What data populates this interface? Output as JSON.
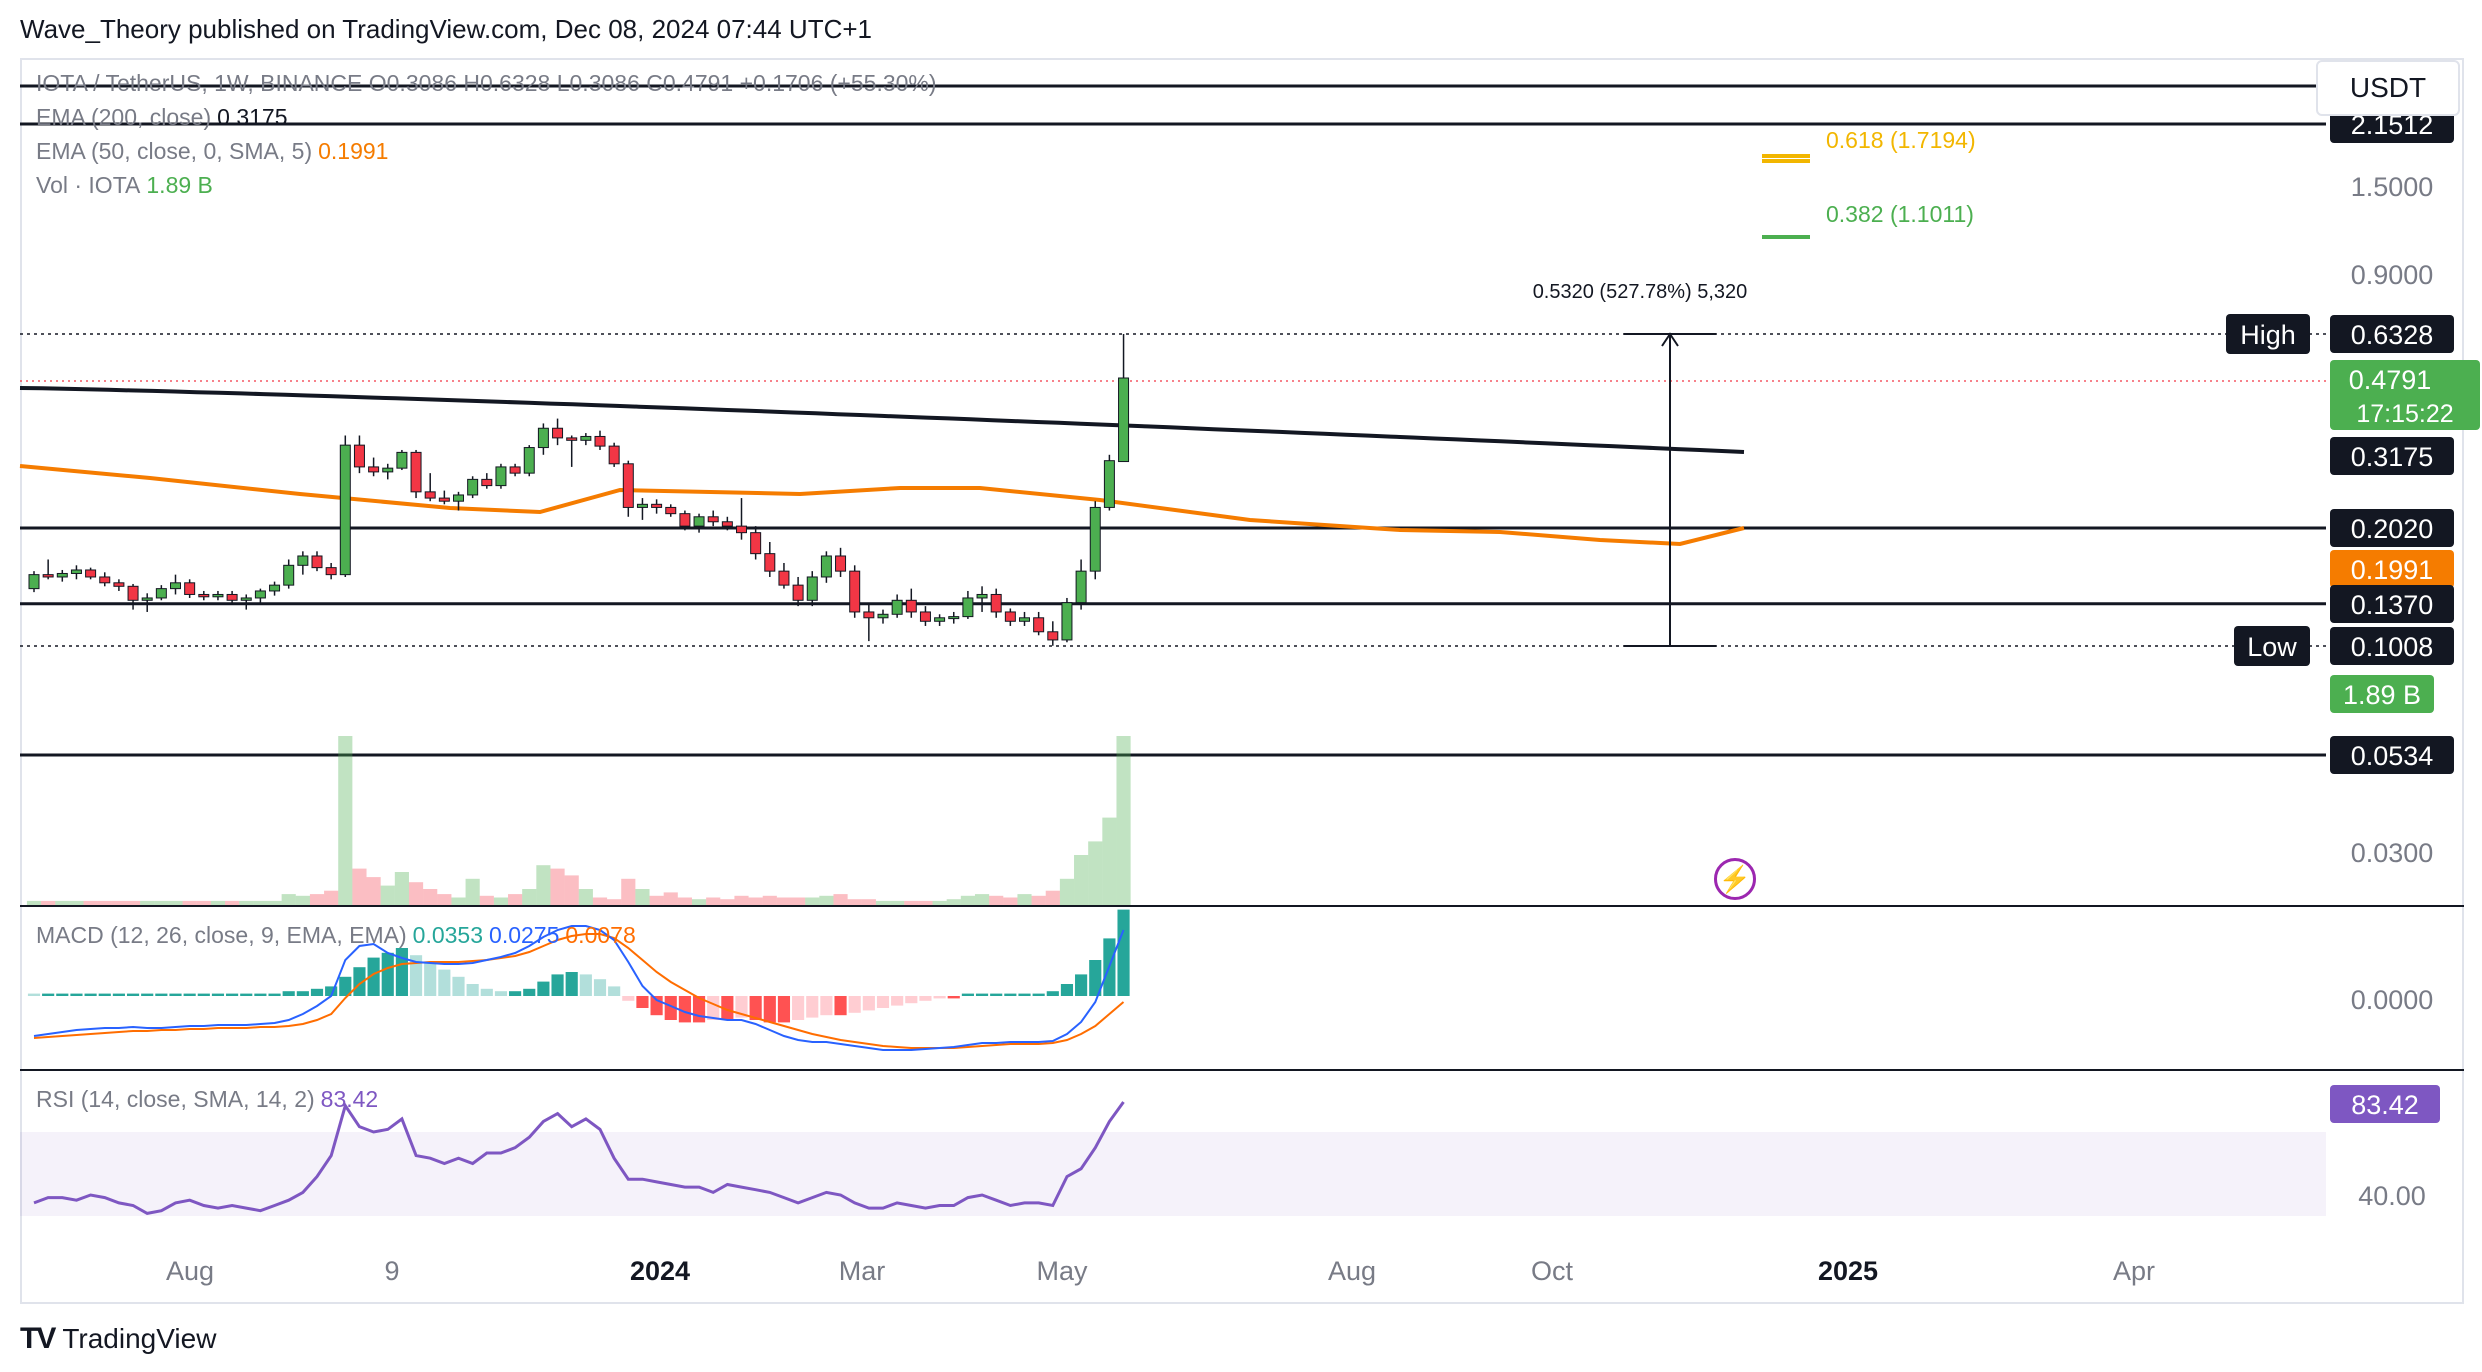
{
  "header": "Wave_Theory published on TradingView.com, Dec 08, 2024 07:44 UTC+1",
  "currency_button": "USDT",
  "footer_brand": "TradingView",
  "legends": {
    "price": "IOTA / TetherUS, 1W, BINANCE  O0.3086  H0.6328  L0.3086  C0.4791  +0.1706 (+55.30%)",
    "ema200_label": "EMA (200, close)",
    "ema200_value": "0.3175",
    "ema50_label": "EMA (50, close, 0, SMA, 5)",
    "ema50_value": "0.1991",
    "vol_label": "Vol · IOTA",
    "vol_value": "1.89 B",
    "macd_label": "MACD (12, 26, close, 9, EMA, EMA)",
    "macd_hist": "0.0353",
    "macd_line": "0.0275",
    "macd_signal": "0.0078",
    "rsi_label": "RSI (14, close, SMA, 14, 2)",
    "rsi_value": "83.42"
  },
  "colors": {
    "up": "#4caf50",
    "down": "#f23645",
    "ema200": "#131722",
    "ema50": "#f57c00",
    "macd": "#2962ff",
    "signal": "#ff6d00",
    "rsi": "#7e57c2",
    "fib618": "#f2b600",
    "fib382": "#4caf50"
  },
  "chart_data": {
    "type": "candlestick",
    "timeframe": "1W",
    "price_axis_ticks": [
      "1.5000",
      "0.9000",
      "0.0300"
    ],
    "x_ticks": [
      "Aug",
      "9",
      "2024",
      "Mar",
      "May",
      "Aug",
      "Oct",
      "2025",
      "Apr"
    ],
    "candles": [
      [
        0.15,
        0.165,
        0.147,
        0.162
      ],
      [
        0.162,
        0.175,
        0.158,
        0.16
      ],
      [
        0.16,
        0.166,
        0.156,
        0.163
      ],
      [
        0.163,
        0.17,
        0.158,
        0.166
      ],
      [
        0.166,
        0.168,
        0.158,
        0.16
      ],
      [
        0.16,
        0.164,
        0.152,
        0.155
      ],
      [
        0.155,
        0.158,
        0.148,
        0.152
      ],
      [
        0.152,
        0.154,
        0.132,
        0.14
      ],
      [
        0.14,
        0.146,
        0.13,
        0.142
      ],
      [
        0.142,
        0.153,
        0.14,
        0.15
      ],
      [
        0.15,
        0.162,
        0.145,
        0.155
      ],
      [
        0.155,
        0.158,
        0.142,
        0.145
      ],
      [
        0.145,
        0.148,
        0.14,
        0.143
      ],
      [
        0.143,
        0.148,
        0.14,
        0.145
      ],
      [
        0.145,
        0.148,
        0.136,
        0.14
      ],
      [
        0.14,
        0.145,
        0.132,
        0.142
      ],
      [
        0.142,
        0.15,
        0.138,
        0.148
      ],
      [
        0.148,
        0.156,
        0.144,
        0.153
      ],
      [
        0.153,
        0.175,
        0.15,
        0.17
      ],
      [
        0.17,
        0.182,
        0.162,
        0.178
      ],
      [
        0.178,
        0.182,
        0.165,
        0.168
      ],
      [
        0.168,
        0.172,
        0.158,
        0.162
      ],
      [
        0.162,
        0.36,
        0.16,
        0.34
      ],
      [
        0.34,
        0.36,
        0.29,
        0.3
      ],
      [
        0.3,
        0.315,
        0.285,
        0.292
      ],
      [
        0.292,
        0.305,
        0.28,
        0.298
      ],
      [
        0.298,
        0.33,
        0.295,
        0.325
      ],
      [
        0.325,
        0.33,
        0.25,
        0.26
      ],
      [
        0.26,
        0.29,
        0.245,
        0.25
      ],
      [
        0.25,
        0.262,
        0.24,
        0.245
      ],
      [
        0.245,
        0.26,
        0.23,
        0.255
      ],
      [
        0.255,
        0.285,
        0.25,
        0.28
      ],
      [
        0.28,
        0.29,
        0.265,
        0.27
      ],
      [
        0.27,
        0.305,
        0.265,
        0.3
      ],
      [
        0.3,
        0.305,
        0.285,
        0.29
      ],
      [
        0.29,
        0.34,
        0.285,
        0.335
      ],
      [
        0.335,
        0.385,
        0.32,
        0.375
      ],
      [
        0.375,
        0.395,
        0.34,
        0.355
      ],
      [
        0.355,
        0.36,
        0.3,
        0.35
      ],
      [
        0.35,
        0.365,
        0.34,
        0.358
      ],
      [
        0.358,
        0.37,
        0.33,
        0.338
      ],
      [
        0.338,
        0.345,
        0.3,
        0.305
      ],
      [
        0.305,
        0.31,
        0.22,
        0.235
      ],
      [
        0.235,
        0.25,
        0.215,
        0.24
      ],
      [
        0.24,
        0.248,
        0.225,
        0.235
      ],
      [
        0.235,
        0.24,
        0.22,
        0.225
      ],
      [
        0.225,
        0.23,
        0.2,
        0.205
      ],
      [
        0.205,
        0.225,
        0.198,
        0.22
      ],
      [
        0.22,
        0.23,
        0.205,
        0.212
      ],
      [
        0.212,
        0.22,
        0.2,
        0.205
      ],
      [
        0.205,
        0.25,
        0.192,
        0.198
      ],
      [
        0.198,
        0.205,
        0.175,
        0.18
      ],
      [
        0.18,
        0.19,
        0.16,
        0.165
      ],
      [
        0.165,
        0.172,
        0.15,
        0.153
      ],
      [
        0.153,
        0.16,
        0.135,
        0.14
      ],
      [
        0.14,
        0.165,
        0.135,
        0.16
      ],
      [
        0.16,
        0.182,
        0.155,
        0.178
      ],
      [
        0.178,
        0.185,
        0.16,
        0.165
      ],
      [
        0.165,
        0.17,
        0.125,
        0.13
      ],
      [
        0.13,
        0.138,
        0.105,
        0.125
      ],
      [
        0.125,
        0.132,
        0.12,
        0.128
      ],
      [
        0.128,
        0.145,
        0.125,
        0.14
      ],
      [
        0.14,
        0.15,
        0.125,
        0.13
      ],
      [
        0.13,
        0.135,
        0.118,
        0.122
      ],
      [
        0.122,
        0.128,
        0.118,
        0.125
      ],
      [
        0.125,
        0.13,
        0.12,
        0.126
      ],
      [
        0.126,
        0.148,
        0.124,
        0.142
      ],
      [
        0.142,
        0.152,
        0.13,
        0.145
      ],
      [
        0.145,
        0.15,
        0.125,
        0.13
      ],
      [
        0.13,
        0.133,
        0.118,
        0.122
      ],
      [
        0.122,
        0.13,
        0.118,
        0.125
      ],
      [
        0.125,
        0.13,
        0.11,
        0.113
      ],
      [
        0.113,
        0.122,
        0.101,
        0.106
      ],
      [
        0.106,
        0.142,
        0.104,
        0.138
      ],
      [
        0.138,
        0.175,
        0.132,
        0.165
      ],
      [
        0.165,
        0.245,
        0.158,
        0.235
      ],
      [
        0.235,
        0.32,
        0.23,
        0.31
      ],
      [
        0.3086,
        0.6328,
        0.3086,
        0.4791
      ]
    ],
    "volume_pct": [
      3,
      3,
      3,
      3,
      3,
      3,
      3,
      3,
      3,
      3,
      3,
      3,
      3,
      3,
      3,
      3,
      3,
      3,
      7,
      6,
      7,
      9,
      100,
      22,
      17,
      12,
      20,
      14,
      10,
      7,
      5,
      16,
      6,
      5,
      7,
      10,
      24,
      22,
      18,
      10,
      5,
      4,
      16,
      10,
      6,
      8,
      5,
      4,
      5,
      4,
      6,
      5,
      6,
      5,
      5,
      5,
      6,
      7,
      4,
      4,
      3,
      3,
      3,
      3,
      3,
      4,
      6,
      7,
      6,
      5,
      7,
      6,
      9,
      16,
      30,
      38,
      52,
      100
    ],
    "ema200": {
      "start": 0.39,
      "end": 0.3175
    },
    "ema50_last": 0.1991,
    "horizontal_levels": [
      2.1512,
      0.202,
      0.137,
      0.0534
    ],
    "fibonacci": [
      {
        "level": "0.618",
        "price": "(1.7194)"
      },
      {
        "level": "0.382",
        "price": "(1.1011)"
      }
    ],
    "measure_label": "0.5320 (527.78%) 5,320",
    "high": {
      "label": "High",
      "value": "0.6328"
    },
    "low": {
      "label": "Low",
      "value": "0.1008"
    },
    "last_price": {
      "value": "0.4791",
      "countdown": "17:15:22"
    },
    "macd_axis_ticks": [
      "0.0000"
    ],
    "rsi_axis_ticks": [
      "40.00"
    ],
    "rsi_values": [
      45,
      47,
      47,
      46,
      48,
      47,
      45,
      44,
      41,
      42,
      45,
      46,
      44,
      43,
      44,
      43,
      42,
      44,
      46,
      49,
      55,
      63,
      82,
      74,
      72,
      73,
      77,
      63,
      62,
      60,
      62,
      60,
      64,
      64,
      66,
      70,
      76,
      79,
      74,
      77,
      73,
      62,
      54,
      54,
      53,
      52,
      51,
      51,
      49,
      52,
      51,
      50,
      49,
      47,
      45,
      47,
      49,
      48,
      45,
      43,
      43,
      45,
      44,
      43,
      44,
      44,
      47,
      48,
      46,
      44,
      45,
      45,
      44,
      55,
      58,
      66,
      76,
      83.42
    ]
  }
}
